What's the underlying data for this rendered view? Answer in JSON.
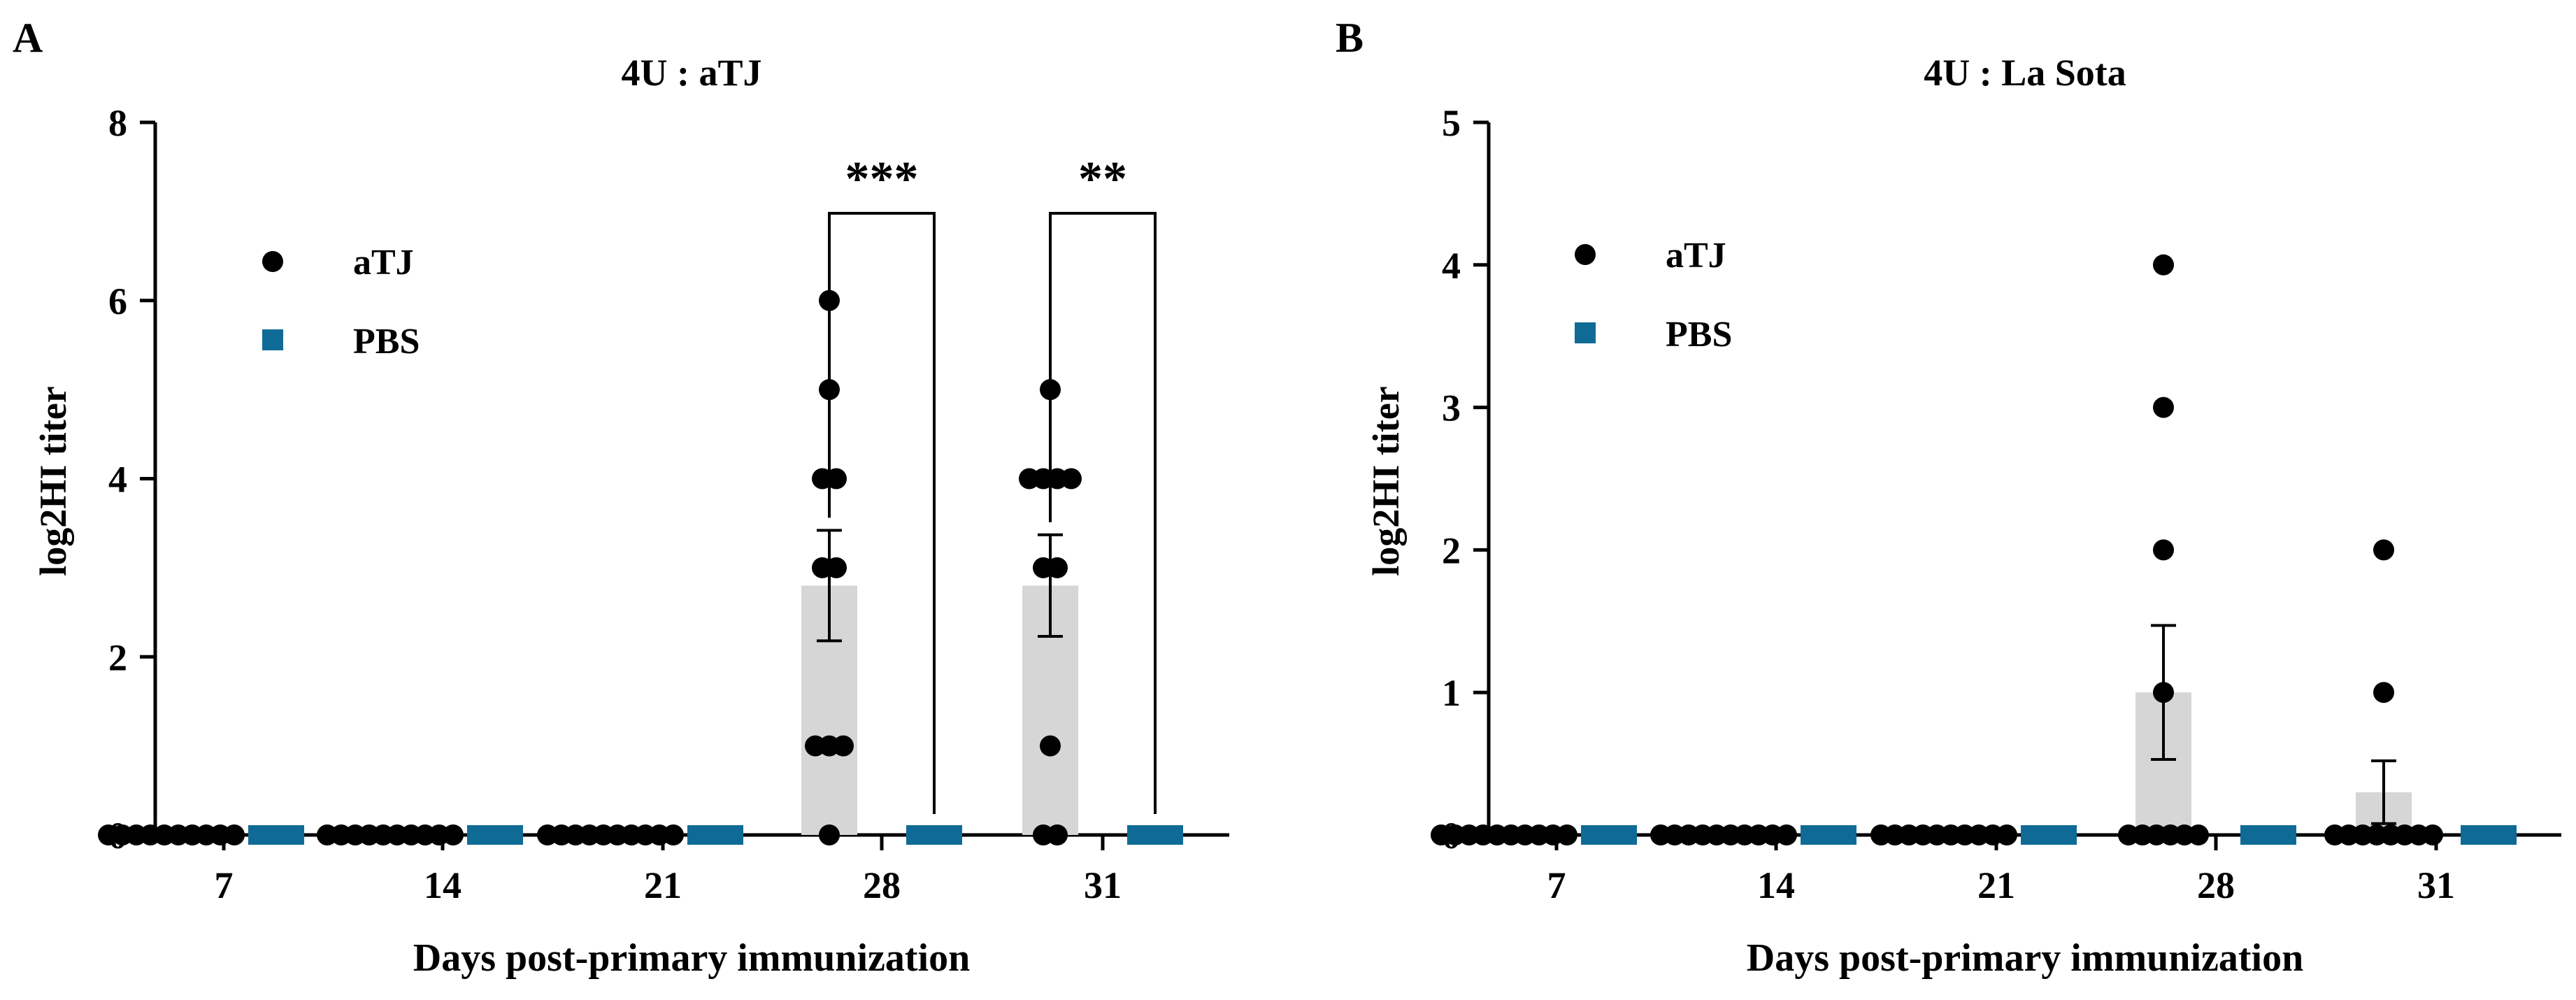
{
  "colors": {
    "atj": "#000000",
    "pbs": "#0f6b96",
    "bar": "#d6d6d6",
    "axis": "#000000"
  },
  "chart_data": [
    {
      "type": "bar",
      "panel_label": "A",
      "title": "4U : aTJ",
      "xlabel": "Days post-primary immunization",
      "ylabel": "log2HI titer",
      "ylim": [
        0,
        8
      ],
      "yticks": [
        0,
        2,
        4,
        6,
        8
      ],
      "categories": [
        "7",
        "14",
        "21",
        "28",
        "31"
      ],
      "series": [
        {
          "name": "aTJ",
          "marker": "circle",
          "mean": [
            0,
            0,
            0,
            2.8,
            2.8
          ],
          "sem": [
            0,
            0,
            0,
            0.62,
            0.57
          ],
          "points": [
            [
              0,
              0,
              0,
              0,
              0,
              0,
              0,
              0,
              0,
              0
            ],
            [
              0,
              0,
              0,
              0,
              0,
              0,
              0,
              0,
              0,
              0
            ],
            [
              0,
              0,
              0,
              0,
              0,
              0,
              0,
              0,
              0,
              0
            ],
            [
              6,
              5,
              4,
              4,
              3,
              3,
              1,
              1,
              1,
              0
            ],
            [
              5,
              4,
              4,
              4,
              4,
              3,
              3,
              1,
              0,
              0
            ]
          ]
        },
        {
          "name": "PBS",
          "marker": "square",
          "mean": [
            0,
            0,
            0,
            0,
            0
          ],
          "sem": [
            0,
            0,
            0,
            0,
            0
          ]
        }
      ],
      "significance": [
        {
          "category": "28",
          "label": "***"
        },
        {
          "category": "31",
          "label": "**"
        }
      ],
      "legend": {
        "position": "top-left",
        "entries": [
          "aTJ",
          "PBS"
        ]
      }
    },
    {
      "type": "bar",
      "panel_label": "B",
      "title": "4U : La Sota",
      "xlabel": "Days post-primary immunization",
      "ylabel": "log2HI titer",
      "ylim": [
        0,
        5
      ],
      "yticks": [
        0,
        1,
        2,
        3,
        4,
        5
      ],
      "categories": [
        "7",
        "14",
        "21",
        "28",
        "31"
      ],
      "series": [
        {
          "name": "aTJ",
          "marker": "circle",
          "mean": [
            0,
            0,
            0,
            1.0,
            0.3
          ],
          "sem": [
            0,
            0,
            0,
            0.47,
            0.22
          ],
          "points": [
            [
              0,
              0,
              0,
              0,
              0,
              0,
              0,
              0,
              0,
              0
            ],
            [
              0,
              0,
              0,
              0,
              0,
              0,
              0,
              0,
              0,
              0
            ],
            [
              0,
              0,
              0,
              0,
              0,
              0,
              0,
              0,
              0,
              0
            ],
            [
              4,
              3,
              2,
              1,
              0,
              0,
              0,
              0,
              0,
              0
            ],
            [
              2,
              1,
              0,
              0,
              0,
              0,
              0,
              0,
              0,
              0
            ]
          ]
        },
        {
          "name": "PBS",
          "marker": "square",
          "mean": [
            0,
            0,
            0,
            0,
            0
          ],
          "sem": [
            0,
            0,
            0,
            0,
            0
          ]
        }
      ],
      "significance": [],
      "legend": {
        "position": "top-left",
        "entries": [
          "aTJ",
          "PBS"
        ]
      }
    }
  ]
}
